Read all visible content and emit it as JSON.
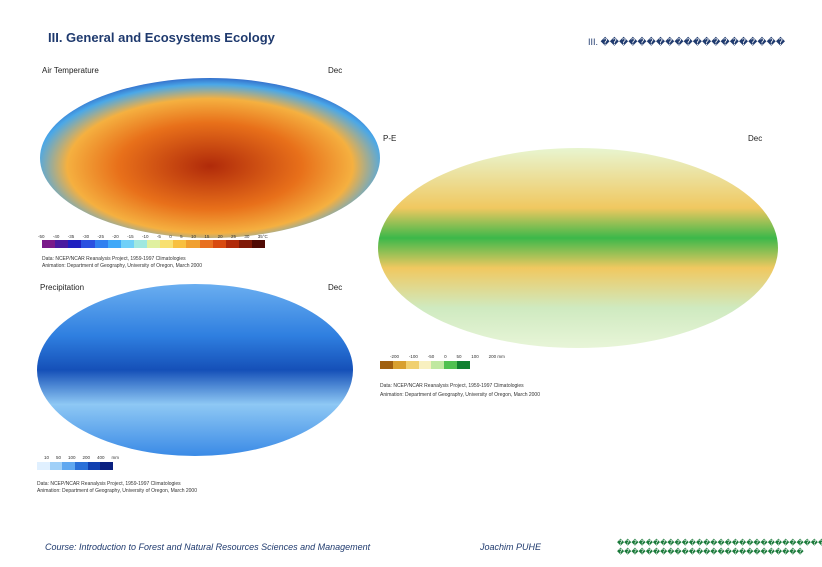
{
  "header": {
    "title": "III. General and Ecosystems Ecology",
    "right": "III. ��������������������"
  },
  "panels": [
    {
      "label": "Air Temperature",
      "month": "Dec",
      "scale": [
        "-50",
        "-40",
        "-35",
        "-30",
        "-25",
        "-20",
        "-15",
        "-10",
        "-5",
        "0",
        "5",
        "10",
        "15",
        "20",
        "25",
        "30",
        "35°C"
      ],
      "credits": [
        "Data: NCEP/NCAR Reanalysis Project, 1959-1997 Climatologies",
        "Animation: Department of Geography, University of Oregon, March 2000"
      ]
    },
    {
      "label": "Precipitation",
      "month": "Dec",
      "scale": [
        "10",
        "50",
        "100",
        "200",
        "400",
        "mm"
      ],
      "credits": [
        "Data: NCEP/NCAR Reanalysis Project, 1959-1997 Climatologies",
        "Animation: Department of Geography, University of Oregon, March 2000"
      ]
    },
    {
      "label": "P-E",
      "month": "Dec",
      "scale": [
        "-200",
        "-100",
        "-50",
        "0",
        "50",
        "100",
        "200 mm"
      ],
      "credits": [
        "Data: NCEP/NCAR Reanalysis Project, 1959-1997 Climatologies",
        "Animation: Department of Geography, University of Oregon, March 2000"
      ]
    }
  ],
  "footer": {
    "course": "Course: Introduction to Forest and Natural Resources Sciences and Management",
    "author": "Joachim PUHE",
    "right": [
      "������������������������������",
      "��������������������������"
    ]
  }
}
